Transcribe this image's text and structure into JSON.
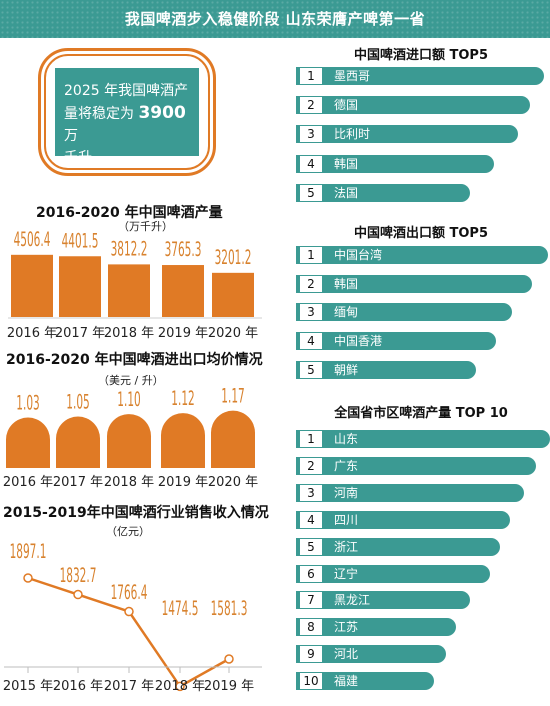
{
  "header": {
    "title": "我国啤酒步入稳健阶段  山东荣膺产啤第一省"
  },
  "callout": {
    "line1": "2025 年我国啤酒产",
    "line2_pre": "量将稳定为",
    "value": "3900",
    "line2_post": "万",
    "line3": "千升。"
  },
  "colors": {
    "teal": "#3b9a93",
    "orange": "#e07a25",
    "orange_text": "#d8822e"
  },
  "production": {
    "title": "2016-2020 年中国啤酒产量",
    "unit": "（万千升）"
  },
  "price": {
    "title": "2016-2020 年中国啤酒进出口均价情况",
    "unit": "（美元 / 升）"
  },
  "revenue": {
    "title": "2015-2019年中国啤酒行业销售收入情况",
    "unit": "（亿元）"
  },
  "chart_data": [
    {
      "type": "bar",
      "categories": [
        "2016 年",
        "2017 年",
        "2018 年",
        "2019 年",
        "2020 年"
      ],
      "values": [
        4506.4,
        4401.5,
        3812.2,
        3765.3,
        3201.2
      ],
      "labels": [
        "4506.4",
        "4401.5",
        "3812.2",
        "3765.3",
        "3201.2"
      ],
      "title": "2016-2020 年中国啤酒产量",
      "ylabel": "（万千升）"
    },
    {
      "type": "bar",
      "categories": [
        "2016 年",
        "2017 年",
        "2018 年",
        "2019 年",
        "2020 年"
      ],
      "values": [
        1.03,
        1.05,
        1.1,
        1.12,
        1.17
      ],
      "labels": [
        "1.03",
        "1.05",
        "1.10",
        "1.12",
        "1.17"
      ],
      "title": "2016-2020 年中国啤酒进出口均价情况",
      "ylabel": "（美元 / 升）"
    },
    {
      "type": "line",
      "categories": [
        "2015 年",
        "2016 年",
        "2017 年",
        "2018 年",
        "2019 年"
      ],
      "values": [
        1897.1,
        1832.7,
        1766.4,
        1474.5,
        1581.3
      ],
      "labels": [
        "1897.1",
        "1832.7",
        "1766.4",
        "1474.5",
        "1581.3"
      ],
      "title": "2015-2019年中国啤酒行业销售收入情况",
      "ylabel": "（亿元）"
    },
    {
      "type": "bar",
      "title": "中国啤酒进口额 TOP5",
      "ranks": [
        "1",
        "2",
        "3",
        "4",
        "5"
      ],
      "categories": [
        "墨西哥",
        "德国",
        "比利时",
        "韩国",
        "法国"
      ]
    },
    {
      "type": "bar",
      "title": "中国啤酒出口额 TOP5",
      "ranks": [
        "1",
        "2",
        "3",
        "4",
        "5"
      ],
      "categories": [
        "中国台湾",
        "韩国",
        "缅甸",
        "中国香港",
        "朝鲜"
      ]
    },
    {
      "type": "bar",
      "title": "全国省市区啤酒产量 TOP 10",
      "ranks": [
        "1",
        "2",
        "3",
        "4",
        "5",
        "6",
        "7",
        "8",
        "9",
        "10"
      ],
      "categories": [
        "山东",
        "广东",
        "河南",
        "四川",
        "浙江",
        "辽宁",
        "黑龙江",
        "江苏",
        "河北",
        "福建"
      ]
    }
  ]
}
